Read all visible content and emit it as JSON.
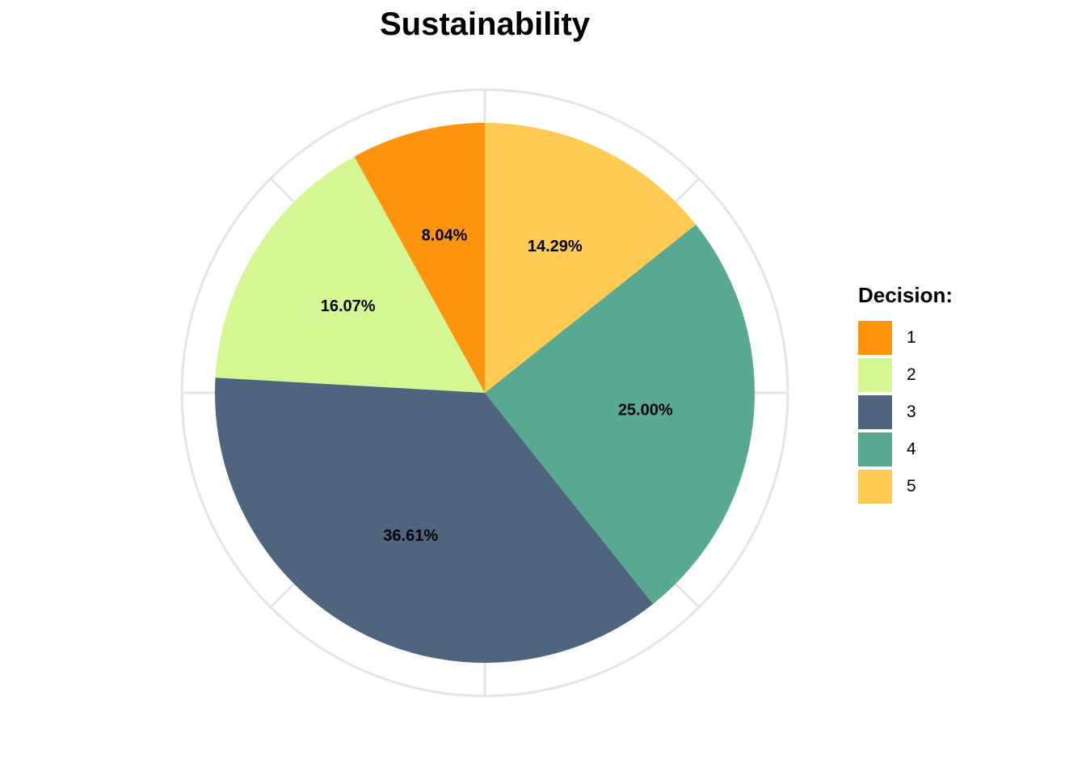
{
  "chart_data": {
    "type": "pie",
    "title": "Sustainability",
    "legend_title": "Decision:",
    "legend_position": "right",
    "categories": [
      "1",
      "2",
      "3",
      "4",
      "5"
    ],
    "values": [
      8.04,
      16.07,
      36.61,
      25.0,
      14.29
    ],
    "labels": [
      "8.04%",
      "16.07%",
      "36.61%",
      "25.00%",
      "14.29%"
    ],
    "colors": [
      "#FD940D",
      "#D4F793",
      "#4F647E",
      "#59A891",
      "#FECB52"
    ],
    "direction": "counterclockwise",
    "start": "12 o'clock",
    "grid": true
  }
}
